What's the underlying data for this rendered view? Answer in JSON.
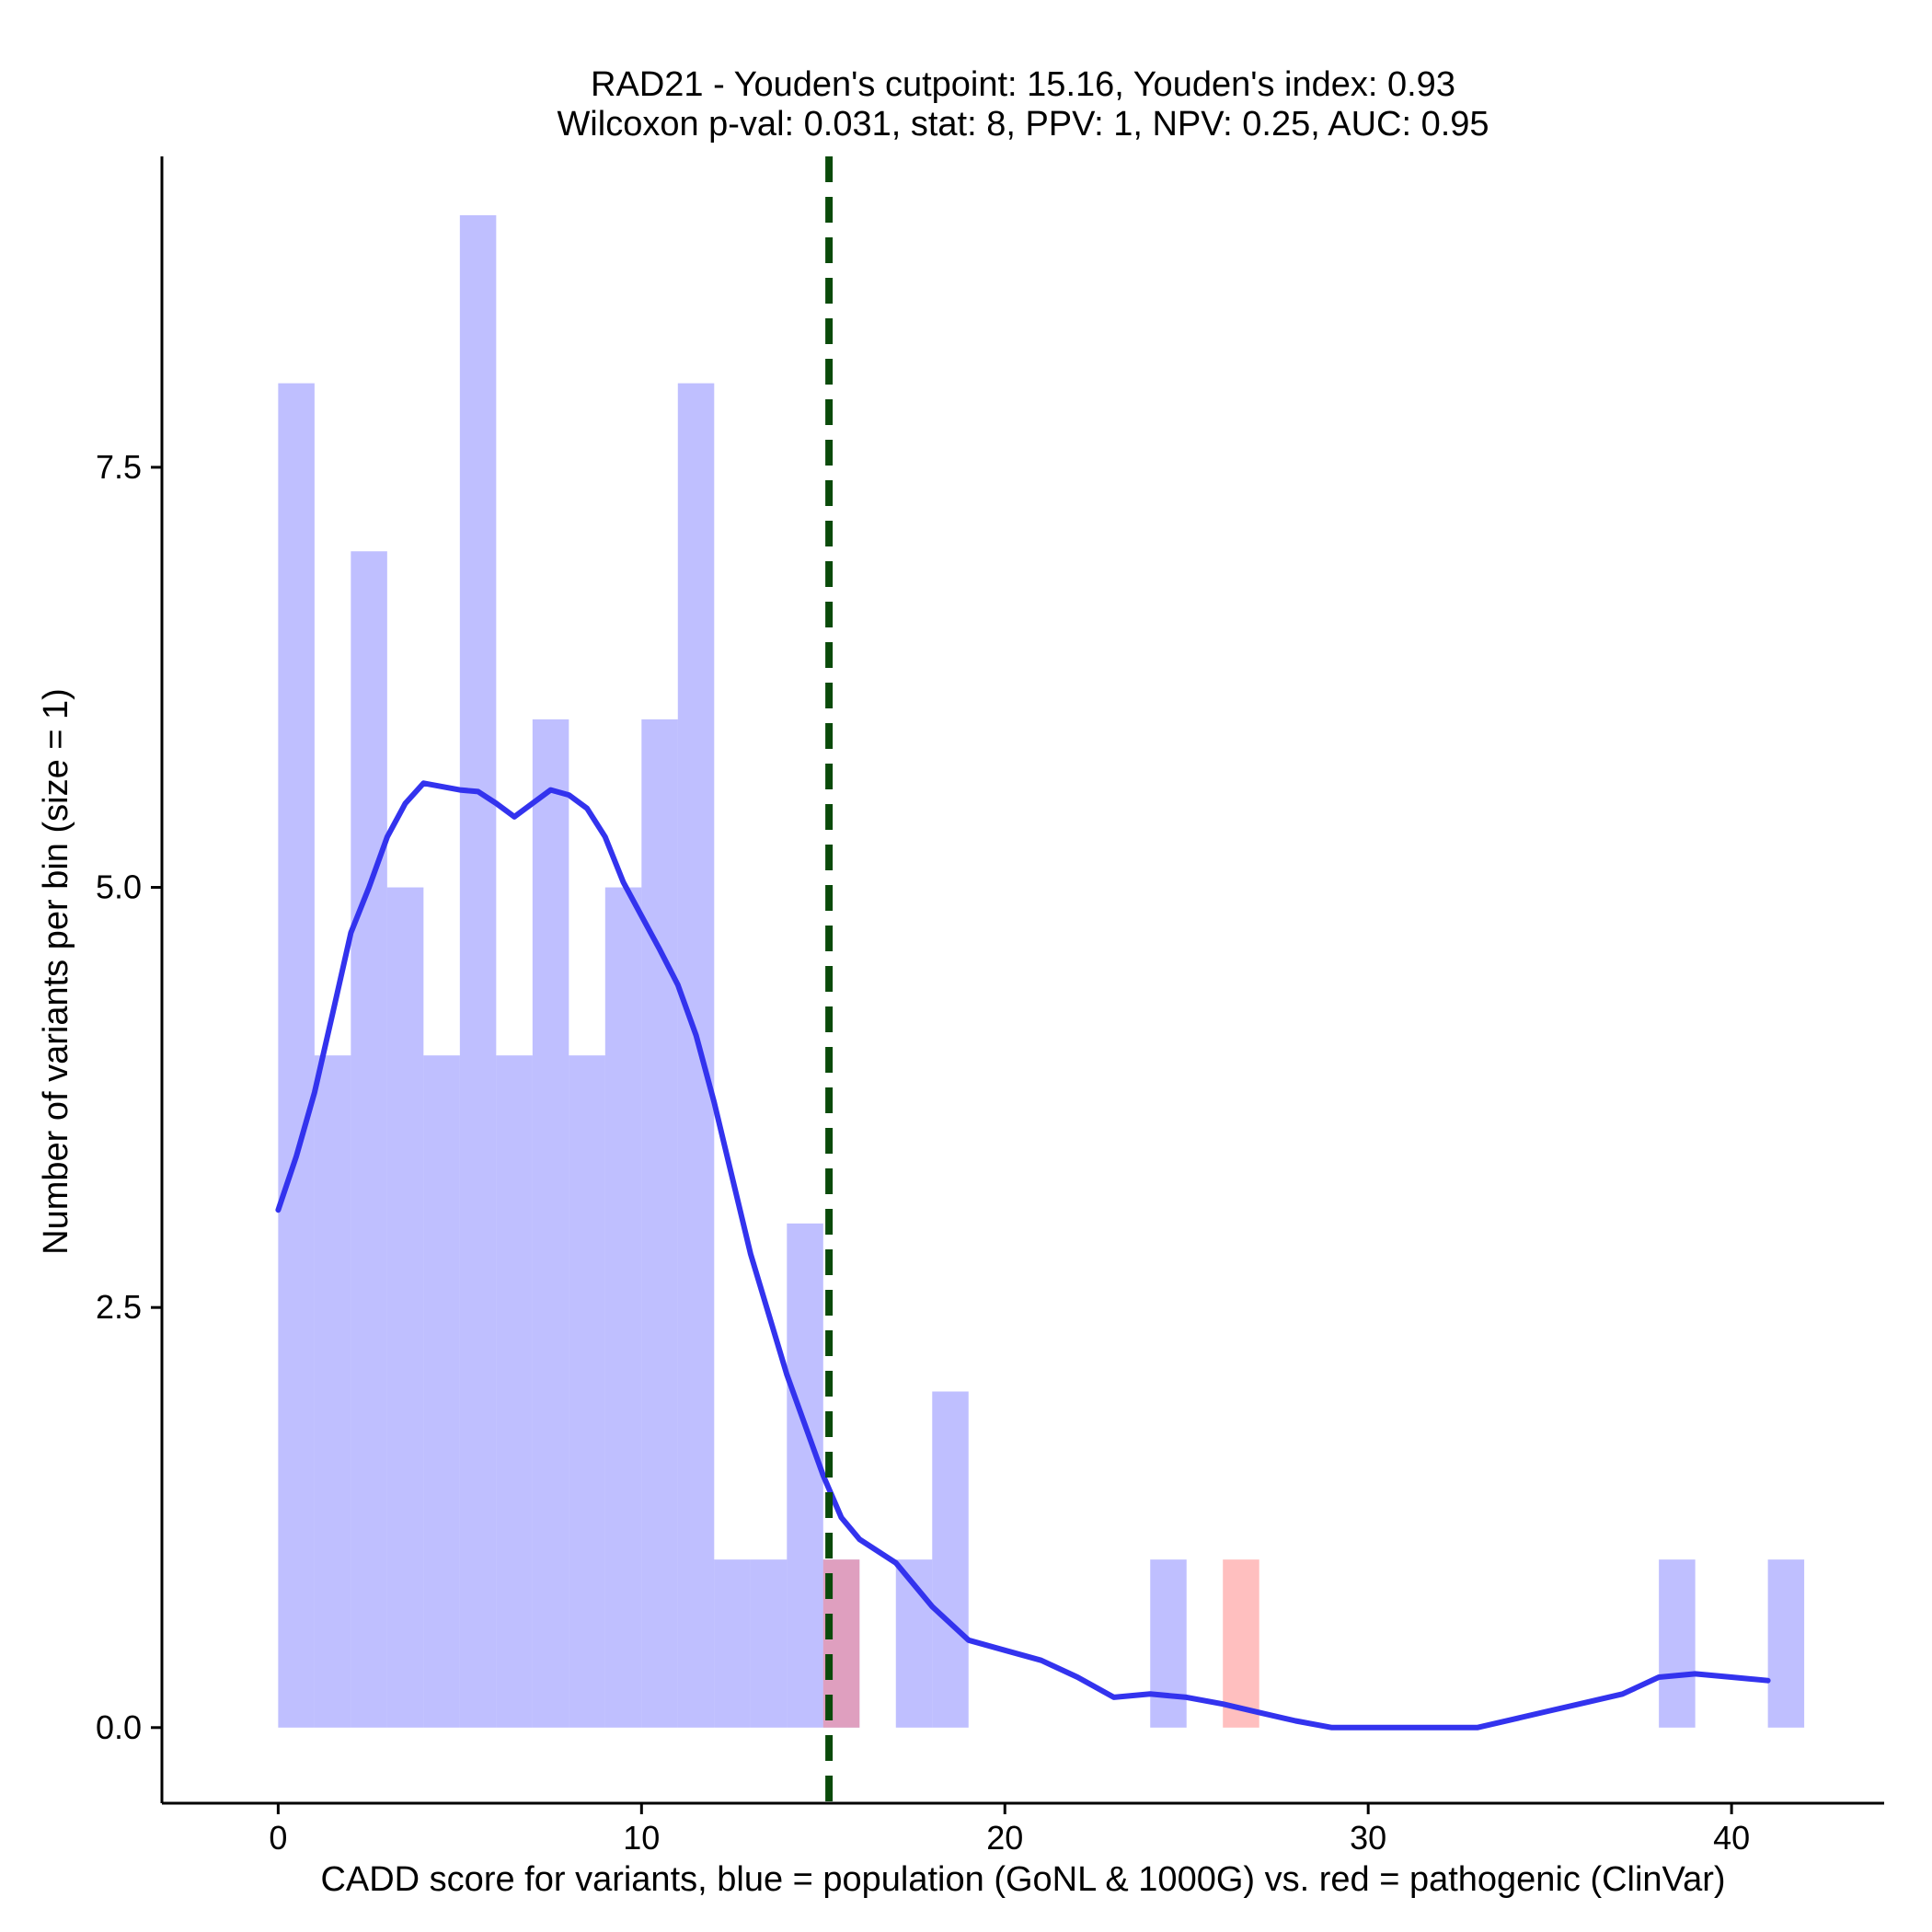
{
  "chart_data": {
    "type": "bar",
    "title_line1": "RAD21 - Youden's cutpoint: 15.16, Youden's index: 0.93",
    "title_line2": "Wilcoxon p-val: 0.031, stat: 8, PPV: 1, NPV: 0.25, AUC: 0.95",
    "xlabel": "CADD score for variants, blue = population (GoNL & 1000G) vs. red = pathogenic (ClinVar)",
    "ylabel": "Number of variants per bin (size = 1)",
    "xlim": [
      -3.2,
      44.2
    ],
    "ylim": [
      -0.45,
      9.35
    ],
    "x_ticks": [
      0,
      10,
      20,
      30,
      40
    ],
    "x_tick_labels": [
      "0",
      "10",
      "20",
      "30",
      "40"
    ],
    "y_ticks": [
      0,
      2.5,
      5,
      7.5
    ],
    "y_tick_labels": [
      "0.0",
      "2.5",
      "5.0",
      "7.5"
    ],
    "bin_width": 1,
    "cutpoint": 15.16,
    "series": [
      {
        "name": "population (GoNL & 1000G)",
        "color": "#8080ff",
        "opacity": 0.5,
        "bins": [
          {
            "start": 0,
            "count": 8
          },
          {
            "start": 1,
            "count": 4
          },
          {
            "start": 2,
            "count": 7
          },
          {
            "start": 3,
            "count": 5
          },
          {
            "start": 4,
            "count": 4
          },
          {
            "start": 5,
            "count": 9
          },
          {
            "start": 6,
            "count": 4
          },
          {
            "start": 7,
            "count": 6
          },
          {
            "start": 8,
            "count": 4
          },
          {
            "start": 9,
            "count": 5
          },
          {
            "start": 10,
            "count": 6
          },
          {
            "start": 11,
            "count": 8
          },
          {
            "start": 12,
            "count": 1
          },
          {
            "start": 13,
            "count": 1
          },
          {
            "start": 14,
            "count": 3
          },
          {
            "start": 15,
            "count": 1
          },
          {
            "start": 17,
            "count": 1
          },
          {
            "start": 18,
            "count": 2
          },
          {
            "start": 24,
            "count": 1
          },
          {
            "start": 38,
            "count": 1
          },
          {
            "start": 41,
            "count": 1
          }
        ]
      },
      {
        "name": "pathogenic (ClinVar)",
        "color": "#ff8080",
        "opacity": 0.5,
        "bins": [
          {
            "start": 15,
            "count": 1
          },
          {
            "start": 26,
            "count": 1
          }
        ]
      }
    ],
    "density_curve": {
      "color": "#3333ee",
      "x": [
        0,
        0.5,
        1,
        1.5,
        2,
        2.5,
        3,
        3.5,
        4,
        4.5,
        5,
        5.5,
        6,
        6.5,
        7,
        7.5,
        8,
        8.5,
        9,
        9.5,
        10,
        10.5,
        11,
        11.5,
        12,
        13,
        14,
        15,
        15.5,
        16,
        17,
        18,
        19,
        20,
        21,
        22,
        23,
        24,
        25,
        26,
        27,
        28,
        29,
        30,
        31,
        32,
        33,
        34,
        35,
        36,
        37,
        38,
        39,
        40,
        41
      ],
      "y": [
        3.08,
        3.4,
        3.78,
        4.25,
        4.73,
        5.0,
        5.3,
        5.5,
        5.62,
        5.6,
        5.58,
        5.57,
        5.5,
        5.42,
        5.5,
        5.58,
        5.55,
        5.47,
        5.3,
        5.03,
        4.83,
        4.63,
        4.42,
        4.12,
        3.72,
        2.82,
        2.1,
        1.5,
        1.25,
        1.12,
        0.98,
        0.72,
        0.52,
        0.46,
        0.4,
        0.3,
        0.18,
        0.2,
        0.18,
        0.14,
        0.09,
        0.04,
        0.0,
        0.0,
        0.0,
        0.0,
        0.0,
        0.05,
        0.1,
        0.15,
        0.2,
        0.3,
        0.32,
        0.3,
        0.28
      ]
    }
  }
}
